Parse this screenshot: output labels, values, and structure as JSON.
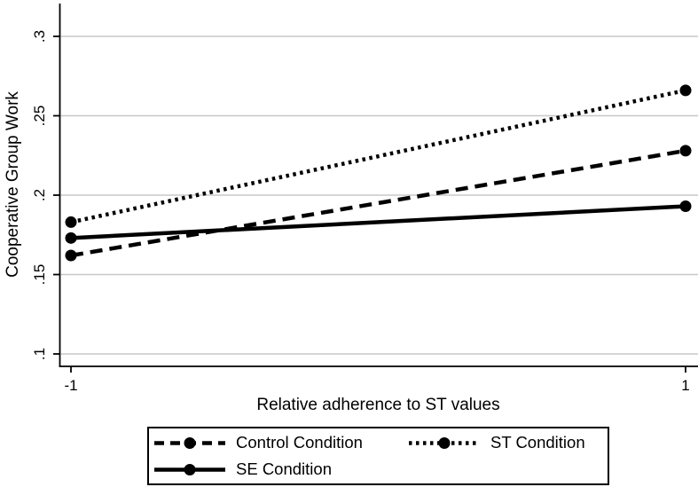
{
  "chart_data": {
    "type": "line",
    "title": "",
    "xlabel": "Relative adherence to ST values",
    "ylabel": "Cooperative Group Work",
    "x": [
      -1,
      1
    ],
    "series": [
      {
        "name": "Control Condition",
        "line_style": "dashed",
        "values": [
          0.162,
          0.228
        ]
      },
      {
        "name": "ST Condition",
        "line_style": "dotted",
        "values": [
          0.183,
          0.266
        ]
      },
      {
        "name": "SE Condition",
        "line_style": "solid",
        "values": [
          0.173,
          0.193
        ]
      }
    ],
    "x_ticks": [
      {
        "value": -1,
        "label": "-1"
      },
      {
        "value": 1,
        "label": "1"
      }
    ],
    "y_ticks": [
      {
        "value": 0.1,
        "label": ".1"
      },
      {
        "value": 0.15,
        "label": ".15"
      },
      {
        "value": 0.2,
        "label": ".2"
      },
      {
        "value": 0.25,
        "label": ".25"
      },
      {
        "value": 0.3,
        "label": ".3"
      }
    ],
    "xlim": [
      -1.04,
      1.04
    ],
    "ylim": [
      0.092,
      0.321
    ],
    "grid": true,
    "marker": "circle",
    "legend_position": "bottom",
    "colors": {
      "series": "#000000",
      "grid": "#c8c8c8",
      "axis": "#000000",
      "text": "#000000",
      "background": "#ffffff"
    }
  }
}
